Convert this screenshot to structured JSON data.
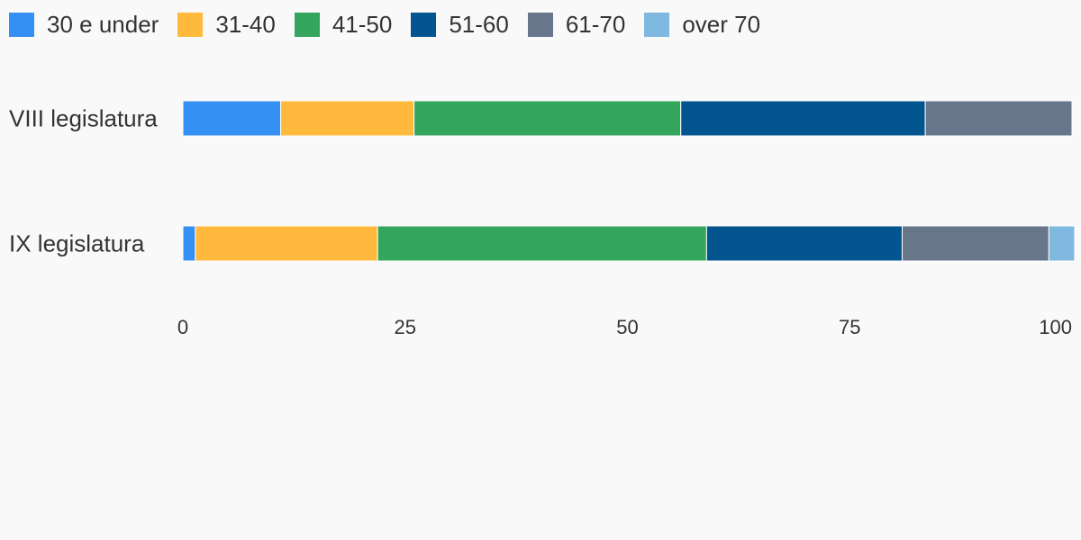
{
  "chart_data": {
    "type": "bar",
    "orientation": "horizontal",
    "stacked": true,
    "categories": [
      "VIII legislatura",
      "IX legislatura"
    ],
    "series": [
      {
        "name": "30 e under",
        "color": "#3590f3",
        "values": [
          11,
          1.4
        ]
      },
      {
        "name": "31-40",
        "color": "#ffb93c",
        "values": [
          15,
          20.5
        ]
      },
      {
        "name": "41-50",
        "color": "#33a55c",
        "values": [
          30,
          37
        ]
      },
      {
        "name": "51-60",
        "color": "#03558f",
        "values": [
          27.5,
          22
        ]
      },
      {
        "name": "61-70",
        "color": "#68768c",
        "values": [
          16.5,
          16.5
        ]
      },
      {
        "name": "over 70",
        "color": "#7fb9df",
        "values": [
          0,
          2.9
        ]
      }
    ],
    "xlim": [
      0,
      100
    ],
    "xticks": [
      "0",
      "25",
      "50",
      "75",
      "100"
    ],
    "legend_position": "top-left",
    "grid": false
  }
}
